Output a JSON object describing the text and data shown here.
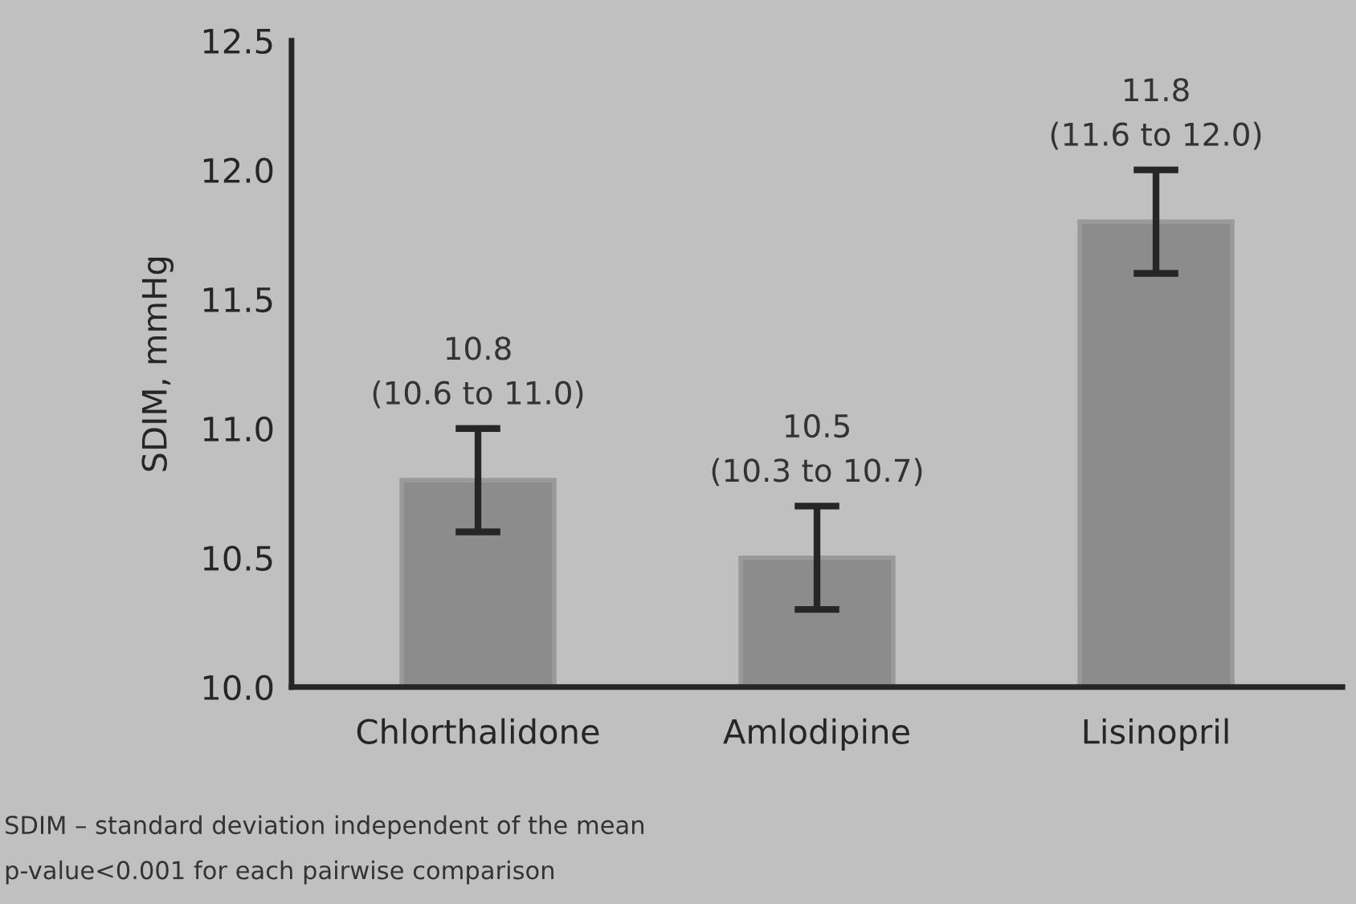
{
  "chart_data": {
    "type": "bar",
    "categories": [
      "Chlorthalidone",
      "Amlodipine",
      "Lisinopril"
    ],
    "values": [
      10.8,
      10.5,
      11.8
    ],
    "errors": [
      0.2,
      0.2,
      0.2
    ],
    "value_labels": [
      "10.8\n(10.6 to 11.0)",
      "10.5\n(10.3 to 10.7)",
      "11.8\n(11.6 to 12.0)"
    ],
    "color": "#8c8c8c",
    "ylabel": "SDIM, mmHg",
    "ylim": [
      10.0,
      12.5
    ],
    "yticks": [
      {
        "value": 10.0,
        "label": "10.0"
      },
      {
        "value": 10.5,
        "label": "10.5"
      },
      {
        "value": 11.0,
        "label": "11.0"
      },
      {
        "value": 11.5,
        "label": "11.5"
      },
      {
        "value": 12.0,
        "label": "12.0"
      },
      {
        "value": 12.5,
        "label": "12.5"
      }
    ],
    "grid": false,
    "annotations": [
      "SDIM – standard deviation independent of the mean",
      "p-value<0.001 for each pairwise comparison"
    ]
  }
}
